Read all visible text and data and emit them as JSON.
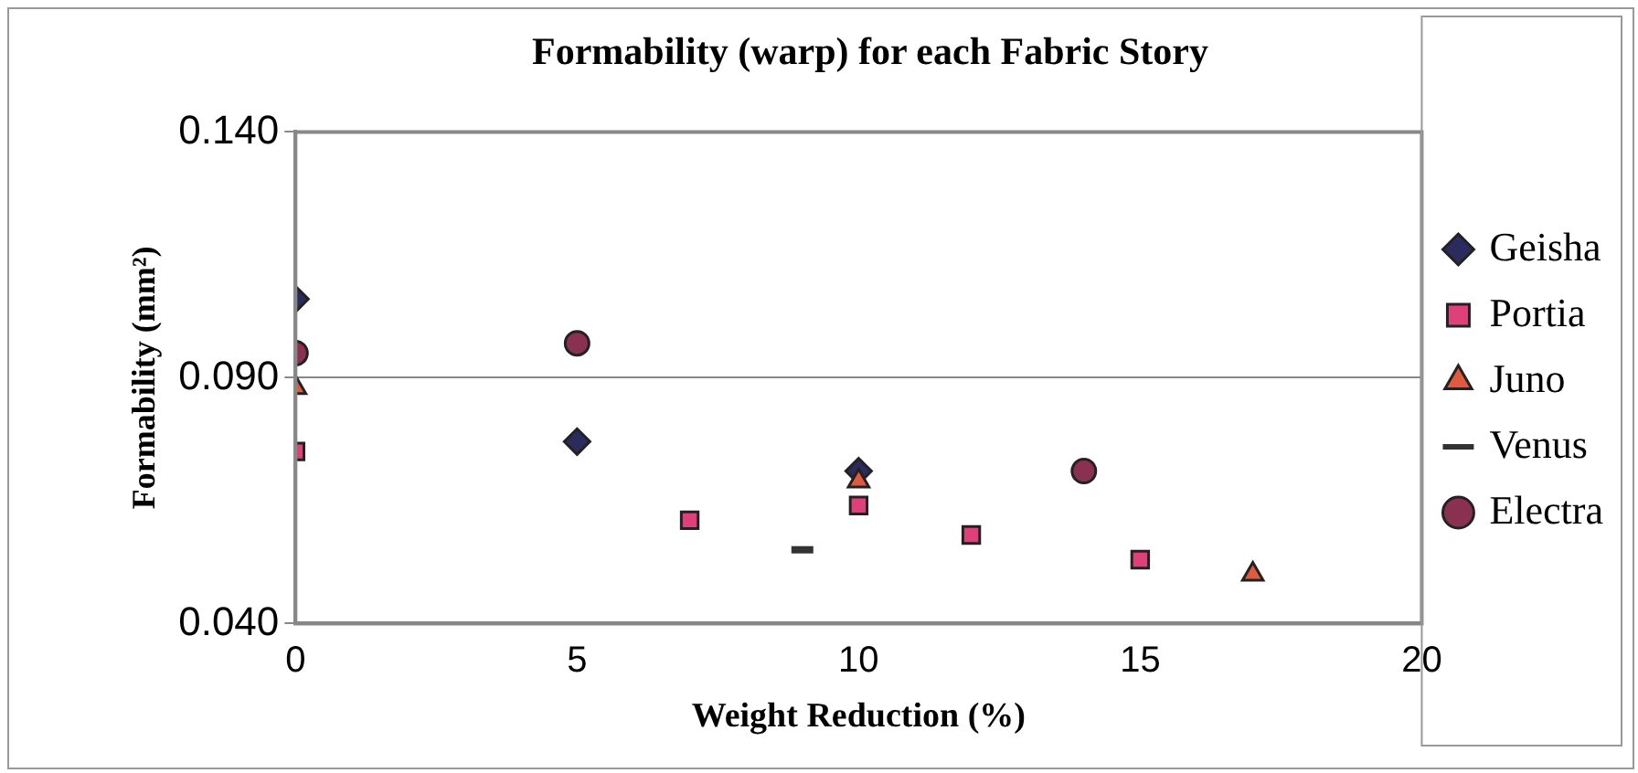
{
  "chart_data": {
    "type": "scatter",
    "title": "Formability (warp) for each Fabric Story",
    "xlabel": "Weight Reduction (%)",
    "ylabel": "Formability (mm²)",
    "series": [
      {
        "name": "Geisha",
        "color": "#2b2b5e",
        "marker": "diamond",
        "x": [
          0,
          5,
          10
        ],
        "values": [
          0.106,
          0.077,
          0.071
        ]
      },
      {
        "name": "Portia",
        "color": "#e0407a",
        "marker": "square",
        "x": [
          0,
          7,
          10,
          12,
          15
        ],
        "values": [
          0.075,
          0.061,
          0.064,
          0.058,
          0.053
        ]
      },
      {
        "name": "Juno",
        "color": "#e05a40",
        "marker": "triangle",
        "x": [
          0,
          10,
          17
        ],
        "values": [
          0.088,
          0.069,
          0.05
        ]
      },
      {
        "name": "Venus",
        "color": "#333333",
        "x": [
          9
        ],
        "values": [
          0.055
        ]
      },
      {
        "name": "Electra",
        "color": "#8a3050",
        "marker": "circle",
        "x": [
          0,
          5,
          14
        ],
        "values": [
          0.095,
          0.097,
          0.071
        ]
      }
    ],
    "xlim": [
      0,
      20
    ],
    "xticks": [
      0,
      5,
      10,
      15,
      20
    ],
    "ylim": [
      0.04,
      0.14
    ],
    "yticks": [
      {
        "value": 0.04,
        "label": "0.040"
      },
      {
        "value": 0.09,
        "label": "0.090"
      },
      {
        "value": 0.14,
        "label": "0.140"
      }
    ],
    "grid": "y",
    "legend": "right"
  }
}
